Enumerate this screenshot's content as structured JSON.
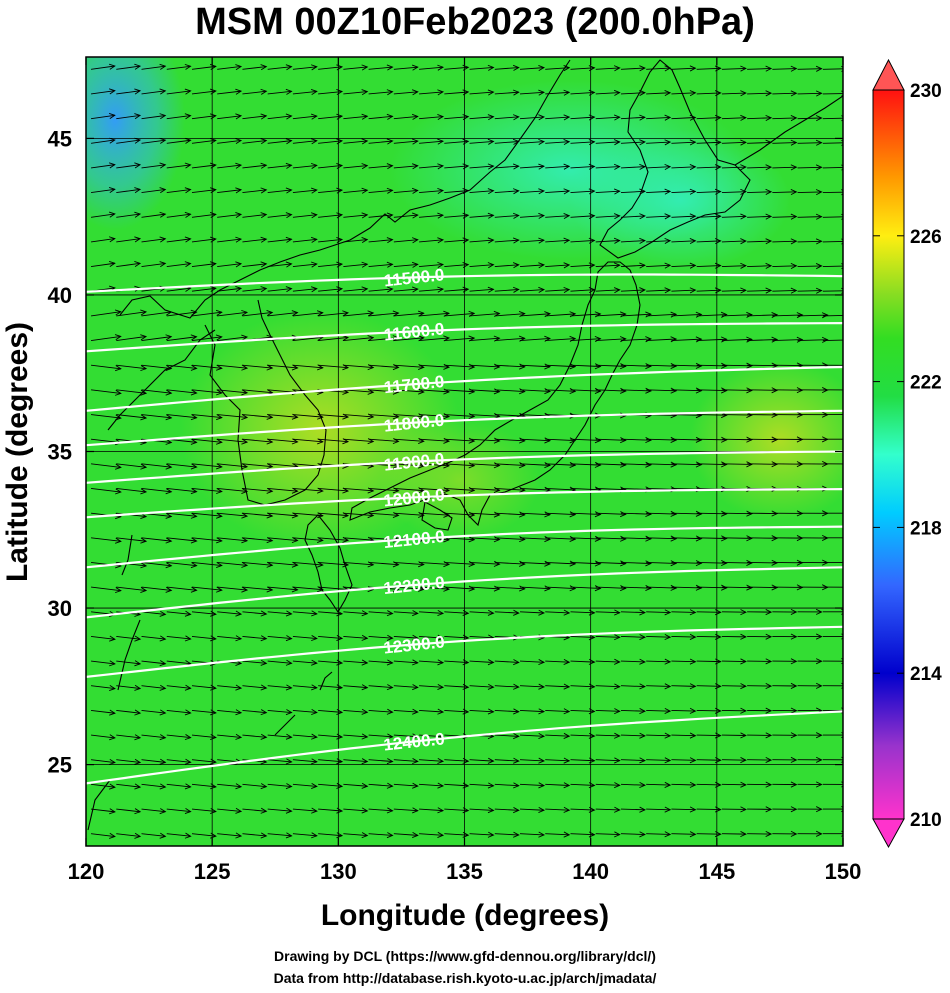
{
  "title": "MSM 00Z10Feb2023 (200.0hPa)",
  "xlabel": "Longitude (degrees)",
  "ylabel": "Latitude  (degrees)",
  "credits": {
    "line1": "Drawing by DCL (https://www.gfd-dennou.org/library/dcl/)",
    "line2": "Data from http://database.rish.kyoto-u.ac.jp/arch/jmadata/"
  },
  "chart_data": {
    "type": "map",
    "region": "East Asia / Japan",
    "xlim": [
      120,
      150
    ],
    "ylim": [
      22.4,
      47.6
    ],
    "x_ticks": [
      "120",
      "125",
      "130",
      "135",
      "140",
      "145",
      "150"
    ],
    "y_ticks": [
      "25",
      "30",
      "35",
      "40",
      "45"
    ],
    "shading": {
      "variable": "temperature (K)",
      "colorbar_range": [
        210,
        230
      ],
      "colorbar_ticks": [
        "210",
        "214",
        "218",
        "222",
        "226",
        "230"
      ],
      "dominant_color": "#33dd33"
    },
    "contours": [
      {
        "label": "11500.0",
        "start_lat": 40.1,
        "end_lat": 40.6
      },
      {
        "label": "11600.0",
        "start_lat": 38.2,
        "end_lat": 39.1
      },
      {
        "label": "11700.0",
        "start_lat": 36.3,
        "end_lat": 37.7
      },
      {
        "label": "11800.0",
        "start_lat": 35.2,
        "end_lat": 36.3
      },
      {
        "label": "11900.0",
        "start_lat": 34.0,
        "end_lat": 35.0
      },
      {
        "label": "12000.0",
        "start_lat": 32.9,
        "end_lat": 33.8
      },
      {
        "label": "12100.0",
        "start_lat": 31.3,
        "end_lat": 32.6
      },
      {
        "label": "12200.0",
        "start_lat": 29.7,
        "end_lat": 31.3
      },
      {
        "label": "12300.0",
        "start_lat": 27.8,
        "end_lat": 29.4
      },
      {
        "label": "12400.0",
        "start_lat": 24.4,
        "end_lat": 26.7
      }
    ],
    "wind": {
      "description": "westerly jet, eastward wind vectors"
    }
  }
}
